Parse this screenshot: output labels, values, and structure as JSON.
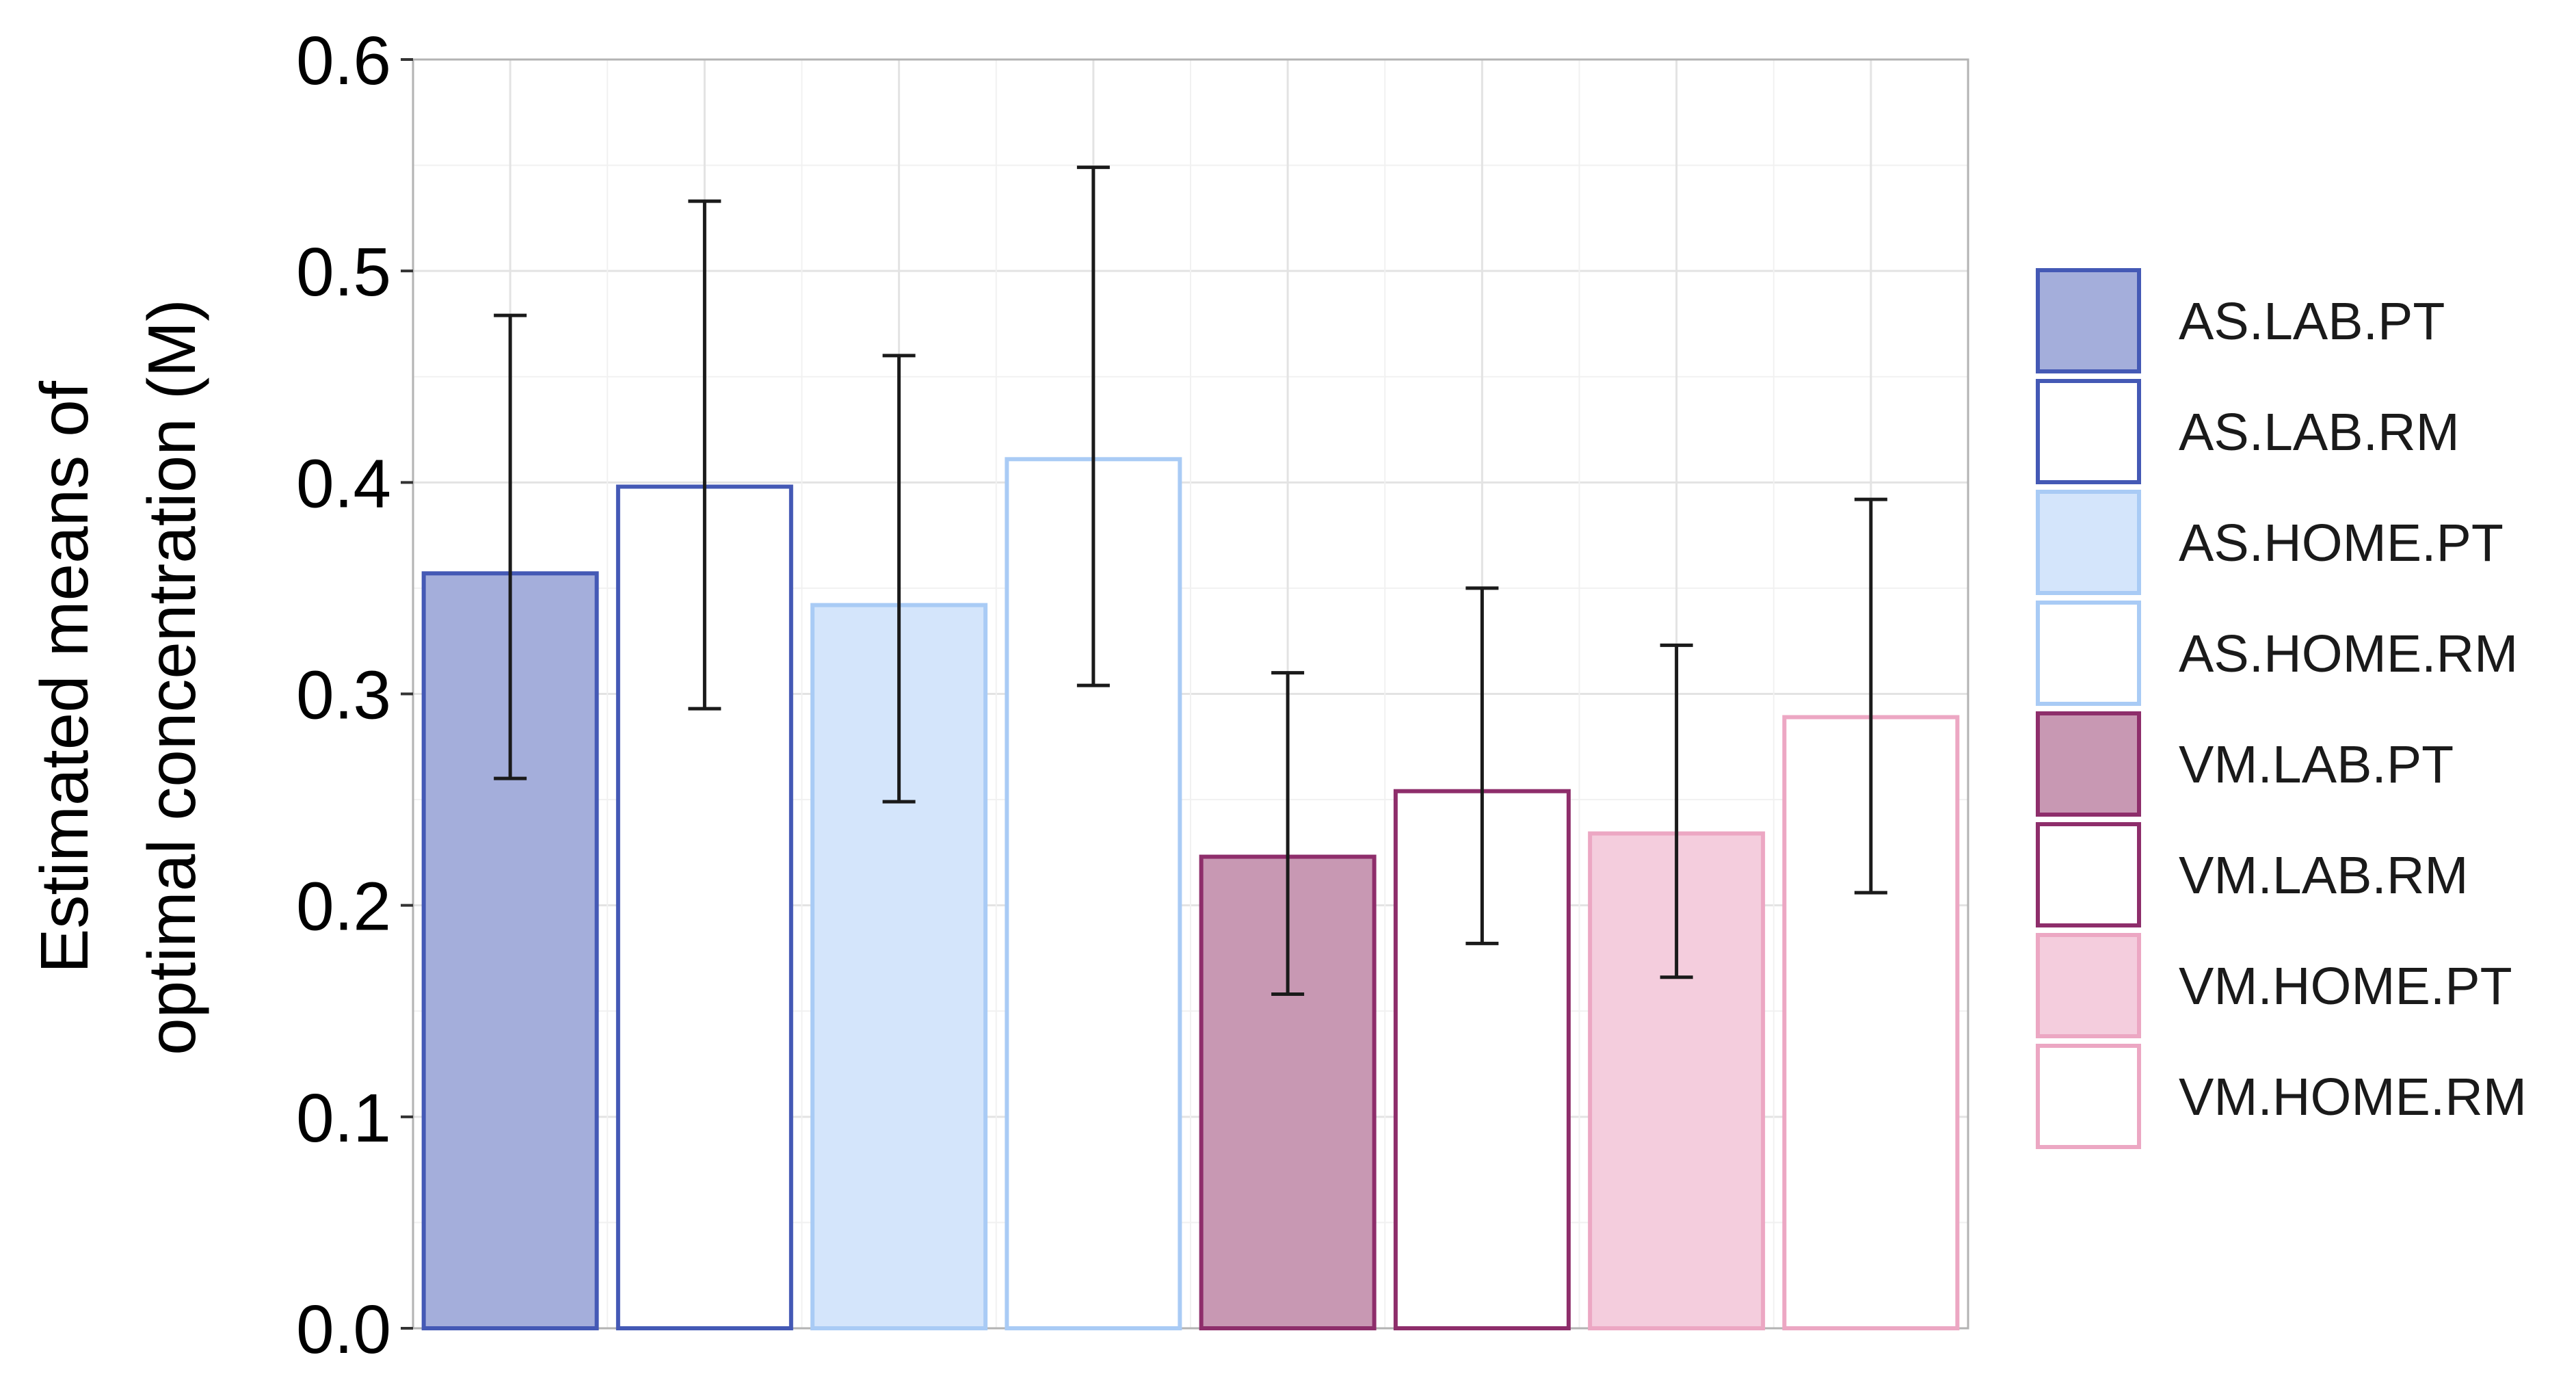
{
  "chart_data": {
    "type": "bar",
    "title": "",
    "xlabel": "",
    "ylabel": "Estimated means of optimal concentration (M)",
    "ylabel_lines": [
      "Estimated means of",
      "optimal concentration (M)"
    ],
    "ylim": [
      0,
      0.6
    ],
    "yticks": [
      "0.0",
      "0.1",
      "0.2",
      "0.3",
      "0.4",
      "0.5",
      "0.6"
    ],
    "grid": true,
    "legend_position": "right",
    "categories": [
      "AS.LAB.PT",
      "AS.LAB.RM",
      "AS.HOME.PT",
      "AS.HOME.RM",
      "VM.LAB.PT",
      "VM.LAB.RM",
      "VM.HOME.PT",
      "VM.HOME.RM"
    ],
    "series": [
      {
        "values": [
          0.357,
          0.398,
          0.342,
          0.411,
          0.223,
          0.254,
          0.234,
          0.289
        ],
        "error_lower": [
          0.26,
          0.293,
          0.249,
          0.304,
          0.158,
          0.182,
          0.166,
          0.206
        ],
        "error_upper": [
          0.479,
          0.533,
          0.46,
          0.549,
          0.31,
          0.35,
          0.323,
          0.392
        ]
      }
    ],
    "colors": {
      "AS.LAB.PT": {
        "fill": "#a4aedb",
        "stroke": "#4459b5"
      },
      "AS.LAB.RM": {
        "fill": "#ffffff",
        "stroke": "#4459b5"
      },
      "AS.HOME.PT": {
        "fill": "#d4e5fb",
        "stroke": "#a9cbf5"
      },
      "AS.HOME.RM": {
        "fill": "#ffffff",
        "stroke": "#a9cbf5"
      },
      "VM.LAB.PT": {
        "fill": "#c898b3",
        "stroke": "#8e2e6b"
      },
      "VM.LAB.RM": {
        "fill": "#ffffff",
        "stroke": "#8e2e6b"
      },
      "VM.HOME.PT": {
        "fill": "#f4cddd",
        "stroke": "#eca7c3"
      },
      "VM.HOME.RM": {
        "fill": "#ffffff",
        "stroke": "#eca7c3"
      }
    }
  }
}
